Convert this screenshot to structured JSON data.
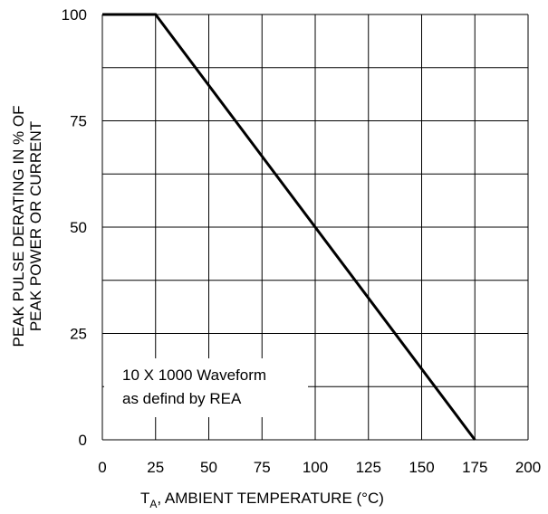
{
  "chart_data": {
    "type": "line",
    "title": "",
    "xlabel": {
      "main": "T",
      "subscript": "A",
      "rest": ", AMBIENT TEMPERATURE (°C)"
    },
    "ylabel": {
      "line1": "PEAK PULSE DERATING IN % OF",
      "line2": "PEAK POWER OR CURRENT"
    },
    "xlim": [
      0,
      200
    ],
    "ylim": [
      0,
      100
    ],
    "x_ticks": [
      0,
      25,
      50,
      75,
      100,
      125,
      150,
      175,
      200
    ],
    "x_tick_labels": [
      "0",
      "25",
      "50",
      "75",
      "100",
      "125",
      "150",
      "175",
      "200"
    ],
    "y_ticks": [
      0,
      25,
      50,
      75,
      100
    ],
    "y_tick_labels": [
      "0",
      "25",
      "50",
      "75",
      "100"
    ],
    "x_grid": [
      0,
      25,
      50,
      75,
      100,
      125,
      150,
      175,
      200
    ],
    "y_grid": [
      0,
      12.5,
      25,
      37.5,
      50,
      62.5,
      75,
      87.5,
      100
    ],
    "grid": true,
    "series": [
      {
        "x": [
          0,
          25,
          175
        ],
        "y": [
          100,
          100,
          0
        ]
      }
    ],
    "annotation": {
      "line1": "10 X 1000 Waveform",
      "line2": "as defind by REA"
    },
    "colors": {
      "line": "#000000",
      "grid": "#000000",
      "background": "#ffffff"
    }
  }
}
